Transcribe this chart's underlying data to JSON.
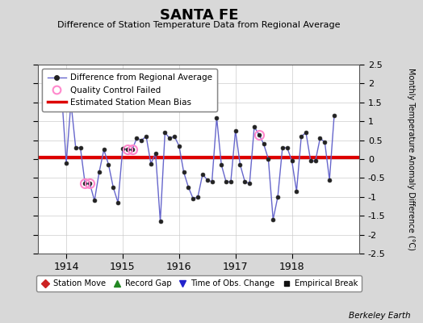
{
  "title": "SANTA FE",
  "subtitle": "Difference of Station Temperature Data from Regional Average",
  "ylabel": "Monthly Temperature Anomaly Difference (°C)",
  "credit": "Berkeley Earth",
  "ylim": [
    -2.5,
    2.5
  ],
  "xlim": [
    1913.5,
    1919.2
  ],
  "xticks": [
    1914,
    1915,
    1916,
    1917,
    1918
  ],
  "yticks": [
    -2.5,
    -2.0,
    -1.5,
    -1.0,
    -0.5,
    0.0,
    0.5,
    1.0,
    1.5,
    2.0,
    2.5
  ],
  "bias_line_y": 0.05,
  "line_color": "#6666cc",
  "bias_color": "#dd0000",
  "background_color": "#d8d8d8",
  "plot_bg_color": "#ffffff",
  "time_series": [
    [
      1913.917,
      1.75
    ],
    [
      1914.0,
      -0.1
    ],
    [
      1914.083,
      1.5
    ],
    [
      1914.167,
      0.3
    ],
    [
      1914.25,
      0.3
    ],
    [
      1914.333,
      -0.65
    ],
    [
      1914.417,
      -0.65
    ],
    [
      1914.5,
      -1.1
    ],
    [
      1914.583,
      -0.35
    ],
    [
      1914.667,
      0.25
    ],
    [
      1914.75,
      -0.15
    ],
    [
      1914.833,
      -0.75
    ],
    [
      1914.917,
      -1.15
    ],
    [
      1915.0,
      0.28
    ],
    [
      1915.083,
      0.25
    ],
    [
      1915.167,
      0.25
    ],
    [
      1915.25,
      0.55
    ],
    [
      1915.333,
      0.5
    ],
    [
      1915.417,
      0.6
    ],
    [
      1915.5,
      -0.12
    ],
    [
      1915.583,
      0.15
    ],
    [
      1915.667,
      -1.65
    ],
    [
      1915.75,
      0.7
    ],
    [
      1915.833,
      0.55
    ],
    [
      1915.917,
      0.6
    ],
    [
      1916.0,
      0.35
    ],
    [
      1916.083,
      -0.35
    ],
    [
      1916.167,
      -0.75
    ],
    [
      1916.25,
      -1.05
    ],
    [
      1916.333,
      -1.0
    ],
    [
      1916.417,
      -0.4
    ],
    [
      1916.5,
      -0.55
    ],
    [
      1916.583,
      -0.6
    ],
    [
      1916.667,
      1.1
    ],
    [
      1916.75,
      -0.15
    ],
    [
      1916.833,
      -0.6
    ],
    [
      1916.917,
      -0.6
    ],
    [
      1917.0,
      0.75
    ],
    [
      1917.083,
      -0.15
    ],
    [
      1917.167,
      -0.6
    ],
    [
      1917.25,
      -0.65
    ],
    [
      1917.333,
      0.85
    ],
    [
      1917.417,
      0.65
    ],
    [
      1917.5,
      0.4
    ],
    [
      1917.583,
      0.0
    ],
    [
      1917.667,
      -1.6
    ],
    [
      1917.75,
      -1.0
    ],
    [
      1917.833,
      0.3
    ],
    [
      1917.917,
      0.3
    ],
    [
      1918.0,
      -0.05
    ],
    [
      1918.083,
      -0.85
    ],
    [
      1918.167,
      0.6
    ],
    [
      1918.25,
      0.7
    ],
    [
      1918.333,
      -0.05
    ],
    [
      1918.417,
      -0.05
    ],
    [
      1918.5,
      0.55
    ],
    [
      1918.583,
      0.45
    ],
    [
      1918.667,
      -0.55
    ],
    [
      1918.75,
      1.15
    ]
  ],
  "qc_failed": [
    [
      1914.333,
      -0.65
    ],
    [
      1914.417,
      -0.65
    ],
    [
      1915.083,
      0.25
    ],
    [
      1915.167,
      0.25
    ],
    [
      1917.417,
      0.65
    ]
  ],
  "legend1_labels": [
    "Difference from Regional Average",
    "Quality Control Failed",
    "Estimated Station Mean Bias"
  ],
  "legend2_labels": [
    "Station Move",
    "Record Gap",
    "Time of Obs. Change",
    "Empirical Break"
  ]
}
